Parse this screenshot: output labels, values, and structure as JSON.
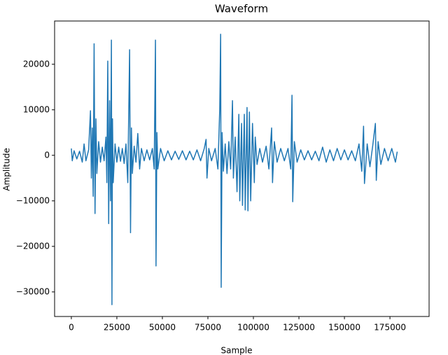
{
  "chart_data": {
    "type": "line",
    "title": "Waveform",
    "x_label": "Sample",
    "y_label": "Amplitude",
    "x": [
      0,
      500,
      1500,
      3000,
      4500,
      6000,
      7000,
      8000,
      9500,
      10500,
      11000,
      11500,
      12000,
      12500,
      13000,
      13500,
      14000,
      15000,
      16000,
      17000,
      18000,
      19000,
      19500,
      20000,
      20500,
      21000,
      21500,
      22000,
      22300,
      22600,
      23000,
      24000,
      25000,
      26000,
      27000,
      28000,
      29000,
      30000,
      31000,
      32000,
      32500,
      33000,
      33500,
      34500,
      35500,
      36500,
      37500,
      38500,
      40000,
      41500,
      43000,
      44500,
      45500,
      46200,
      46500,
      47000,
      47500,
      49000,
      51000,
      53000,
      55000,
      57000,
      59000,
      61000,
      63000,
      65000,
      67000,
      69000,
      71000,
      73000,
      74000,
      74500,
      75500,
      77000,
      79000,
      80500,
      81500,
      82000,
      82300,
      82800,
      83500,
      84500,
      85500,
      86500,
      87500,
      88500,
      89000,
      90000,
      91000,
      92000,
      92500,
      93500,
      94000,
      95000,
      95500,
      96500,
      97000,
      97800,
      98500,
      99500,
      100500,
      101000,
      102000,
      103500,
      105000,
      107000,
      108500,
      110000,
      110500,
      111500,
      113000,
      115000,
      117000,
      119000,
      120500,
      121200,
      121600,
      122500,
      124000,
      126000,
      128000,
      130000,
      132000,
      134000,
      136000,
      138000,
      140000,
      142000,
      144000,
      146000,
      148000,
      150000,
      152000,
      154000,
      156000,
      158000,
      159500,
      160500,
      161000,
      162500,
      164000,
      165500,
      167000,
      167500,
      168500,
      170000,
      172000,
      174000,
      176000,
      178000,
      179000
    ],
    "series": [
      {
        "color": "#1f77b4",
        "values": [
          1500,
          -1200,
          1000,
          -800,
          900,
          -1500,
          2500,
          -1200,
          1200,
          9800,
          -5000,
          6000,
          -9000,
          24500,
          -12800,
          8000,
          -4000,
          3000,
          -1500,
          1800,
          -1200,
          4000,
          -6000,
          20700,
          -15000,
          12000,
          -10000,
          25300,
          -32800,
          8000,
          -6000,
          2500,
          -1500,
          1800,
          -1300,
          1500,
          -1800,
          2500,
          -6000,
          23200,
          -17000,
          6000,
          -4000,
          2000,
          -1500,
          4800,
          -3000,
          1500,
          -1200,
          1200,
          -1000,
          1500,
          -3000,
          25300,
          -24300,
          5000,
          -3000,
          1500,
          -1200,
          1000,
          -1000,
          900,
          -900,
          1000,
          -1000,
          900,
          -1000,
          1200,
          -1200,
          1500,
          3500,
          -5000,
          1500,
          -1200,
          1500,
          -3000,
          10000,
          26600,
          -29000,
          5000,
          -3500,
          2500,
          -4000,
          3000,
          -3000,
          12000,
          -5000,
          4000,
          -8000,
          9000,
          -10000,
          7000,
          -11000,
          9000,
          -12000,
          10500,
          -12200,
          9500,
          -10000,
          7000,
          -6000,
          4000,
          -2000,
          1500,
          -1500,
          2000,
          -3000,
          6000,
          -6000,
          3000,
          -1500,
          1500,
          -1200,
          1500,
          -3000,
          13200,
          -10200,
          3000,
          -1500,
          1200,
          -1000,
          1000,
          -1000,
          900,
          -1200,
          1800,
          -1500,
          1200,
          -1200,
          1500,
          -1000,
          1200,
          -1000,
          1000,
          -1200,
          2500,
          -3500,
          6400,
          -6200,
          2500,
          -2500,
          2000,
          7000,
          -5500,
          3000,
          -2000,
          1500,
          -1200,
          1500,
          -1500,
          800
        ]
      }
    ],
    "xlim": [
      -9200,
      196500
    ],
    "ylim": [
      -35400,
      29500
    ],
    "xticks": [
      0,
      25000,
      50000,
      75000,
      100000,
      125000,
      150000,
      175000
    ],
    "yticks": [
      {
        "value": -30000,
        "label": "−30000"
      },
      {
        "value": -20000,
        "label": "−20000"
      },
      {
        "value": -10000,
        "label": "−10000"
      },
      0,
      10000,
      20000
    ],
    "grid": false
  }
}
